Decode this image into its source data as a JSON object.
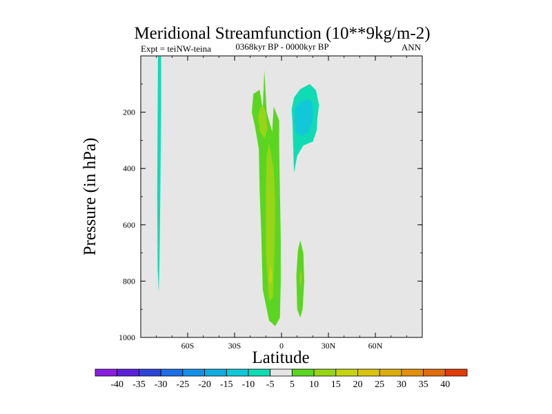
{
  "chart_data": {
    "type": "heatmap",
    "title": "Meridional Streamfunction (10**9kg/m-2)",
    "subtitle": "0368kyr BP - 0000kyr BP",
    "left_label": "Expt = teiNW-teina",
    "right_label": "ANN",
    "xlabel": "Latitude",
    "ylabel": "Pressure (in hPa)",
    "xlim": [
      -90,
      90
    ],
    "ylim": [
      0,
      1000
    ],
    "x_ticks": [
      {
        "value": -60,
        "label": "60S"
      },
      {
        "value": -30,
        "label": "30S"
      },
      {
        "value": 0,
        "label": "0"
      },
      {
        "value": 30,
        "label": "30N"
      },
      {
        "value": 60,
        "label": "60N"
      }
    ],
    "y_ticks": [
      {
        "value": 200,
        "label": "200"
      },
      {
        "value": 400,
        "label": "400"
      },
      {
        "value": 600,
        "label": "600"
      },
      {
        "value": 800,
        "label": "800"
      },
      {
        "value": 1000,
        "label": "1000"
      }
    ],
    "background_color": "#e6e6e6",
    "colorbar": {
      "levels": [
        -40,
        -35,
        -30,
        -25,
        -20,
        -15,
        -10,
        -5,
        5,
        10,
        15,
        20,
        25,
        30,
        35,
        40
      ],
      "labels": [
        "-40",
        "-35",
        "-30",
        "-25",
        "-20",
        "-15",
        "-10",
        "-5",
        "5",
        "10",
        "15",
        "20",
        "25",
        "30",
        "35",
        "40"
      ],
      "colors": [
        "#8a1ee0",
        "#5a22d8",
        "#2e44d8",
        "#1e6ee6",
        "#1690e6",
        "#12acde",
        "#12c8d8",
        "#10dcb4",
        "#e6e6e6",
        "#5ad620",
        "#98d418",
        "#c6d410",
        "#d8c40e",
        "#dcac0c",
        "#e0900c",
        "#e06c0c",
        "#e03c0a"
      ]
    },
    "regions": [
      {
        "name": "high-lat-south-negative",
        "value": -7,
        "points": [
          [
            -79,
            2
          ],
          [
            -77,
            2
          ],
          [
            -77,
            200
          ],
          [
            -77.5,
            500
          ],
          [
            -78,
            720
          ],
          [
            -78.5,
            840
          ],
          [
            -79.2,
            760
          ],
          [
            -79.5,
            500
          ],
          [
            -79.2,
            200
          ]
        ]
      },
      {
        "name": "tropical-positive-main",
        "value": 7,
        "points": [
          [
            -11,
            50
          ],
          [
            -9.5,
            200
          ],
          [
            -6,
            270
          ],
          [
            -5,
            180
          ],
          [
            -1.5,
            230
          ],
          [
            -1.5,
            320
          ],
          [
            -1,
            480
          ],
          [
            -0.5,
            650
          ],
          [
            -0.5,
            800
          ],
          [
            -1,
            930
          ],
          [
            -4,
            960
          ],
          [
            -8,
            940
          ],
          [
            -12,
            830
          ],
          [
            -13,
            620
          ],
          [
            -14,
            480
          ],
          [
            -14.5,
            330
          ],
          [
            -17,
            250
          ],
          [
            -19,
            200
          ],
          [
            -18,
            135
          ],
          [
            -14,
            120
          ],
          [
            -12,
            190
          ]
        ]
      },
      {
        "name": "tropical-positive-upper-core",
        "value": 12,
        "points": [
          [
            -12,
            175
          ],
          [
            -10,
            200
          ],
          [
            -9,
            260
          ],
          [
            -11,
            295
          ],
          [
            -14,
            265
          ],
          [
            -15,
            215
          ],
          [
            -13.5,
            185
          ]
        ]
      },
      {
        "name": "tropical-positive-lower-core",
        "value": 12,
        "points": [
          [
            -8,
            310
          ],
          [
            -5,
            400
          ],
          [
            -4,
            520
          ],
          [
            -4.5,
            700
          ],
          [
            -5.5,
            860
          ],
          [
            -8,
            870
          ],
          [
            -10,
            700
          ],
          [
            -10,
            470
          ],
          [
            -9.5,
            360
          ]
        ]
      },
      {
        "name": "tropical-positive-lower-spot",
        "value": 17,
        "points": [
          [
            -7.5,
            740
          ],
          [
            -6,
            770
          ],
          [
            -6.5,
            810
          ],
          [
            -8,
            800
          ]
        ]
      },
      {
        "name": "northern-upper-negative-outer",
        "value": -7,
        "points": [
          [
            7,
            235
          ],
          [
            6.5,
            190
          ],
          [
            8,
            148
          ],
          [
            12,
            118
          ],
          [
            18,
            100
          ],
          [
            22,
            122
          ],
          [
            24,
            175
          ],
          [
            23,
            220
          ],
          [
            22.5,
            265
          ],
          [
            20,
            305
          ],
          [
            14,
            318
          ],
          [
            10,
            355
          ],
          [
            8,
            415
          ],
          [
            7.5,
            330
          ]
        ]
      },
      {
        "name": "northern-upper-negative-core",
        "value": -12,
        "points": [
          [
            8,
            220
          ],
          [
            9,
            180
          ],
          [
            13,
            160
          ],
          [
            18,
            152
          ],
          [
            20,
            175
          ],
          [
            20,
            230
          ],
          [
            18,
            270
          ],
          [
            13,
            285
          ],
          [
            9,
            270
          ]
        ]
      },
      {
        "name": "northern-lower-positive",
        "value": 7,
        "points": [
          [
            12,
            655
          ],
          [
            14,
            700
          ],
          [
            14.5,
            800
          ],
          [
            13.5,
            900
          ],
          [
            12,
            930
          ],
          [
            10,
            900
          ],
          [
            9.5,
            780
          ],
          [
            10.5,
            690
          ]
        ]
      },
      {
        "name": "northern-lower-positive-core",
        "value": 12,
        "points": [
          [
            12,
            760
          ],
          [
            13,
            780
          ],
          [
            12.5,
            820
          ],
          [
            11.5,
            800
          ]
        ]
      }
    ]
  }
}
